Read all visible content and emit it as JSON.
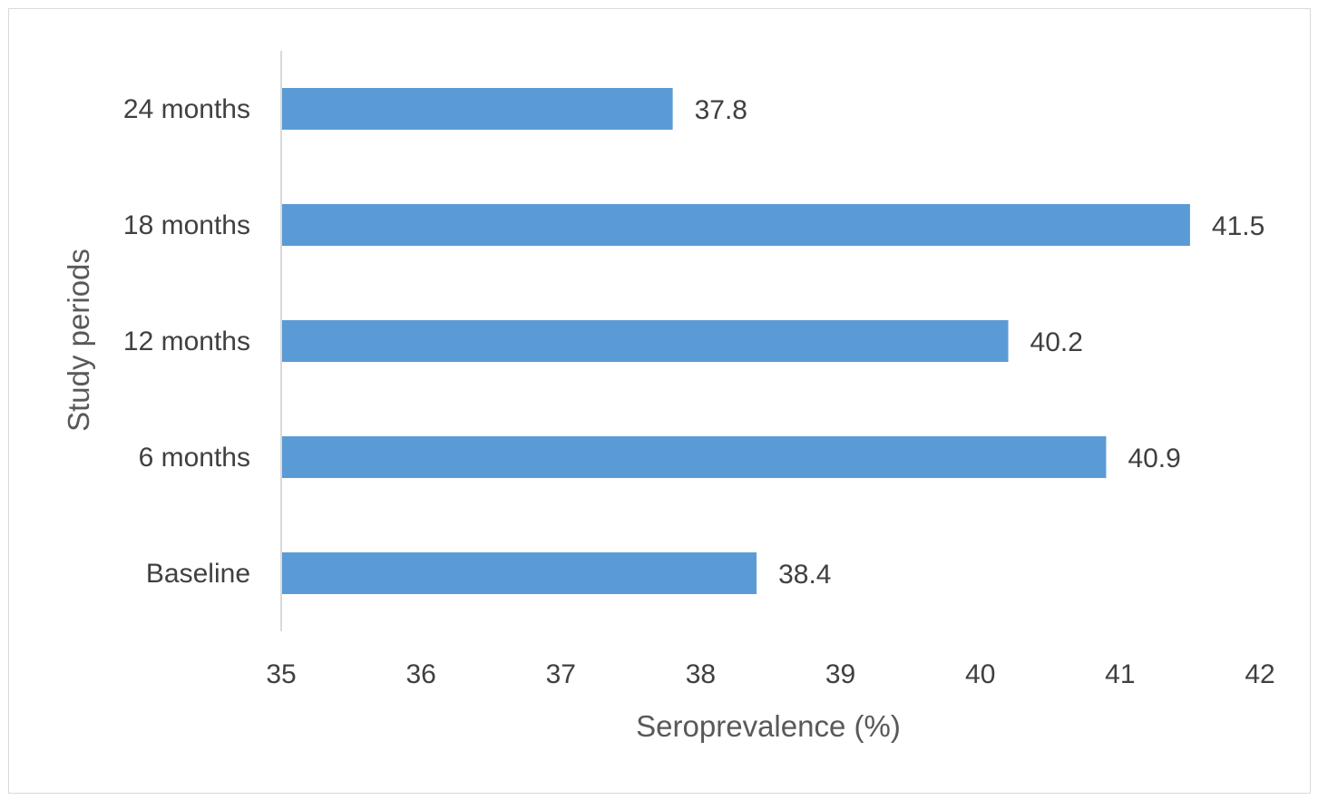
{
  "chart_data": {
    "type": "bar",
    "orientation": "horizontal",
    "categories": [
      "Baseline",
      "6 months",
      "12 months",
      "18 months",
      "24 months"
    ],
    "values": [
      38.4,
      40.9,
      40.2,
      41.5,
      37.8
    ],
    "data_labels": [
      "38.4",
      "40.9",
      "40.2",
      "41.5",
      "37.8"
    ],
    "xticks": [
      "35",
      "36",
      "37",
      "38",
      "39",
      "40",
      "41",
      "42"
    ],
    "xlim": [
      35,
      42
    ],
    "xlabel": "Seroprevalence (%)",
    "ylabel": "Study periods",
    "title": "",
    "grid": false,
    "legend": "none",
    "bar_color": "#5B9BD5",
    "axis_color": "#d9d9d9",
    "text_color": "#404040"
  }
}
